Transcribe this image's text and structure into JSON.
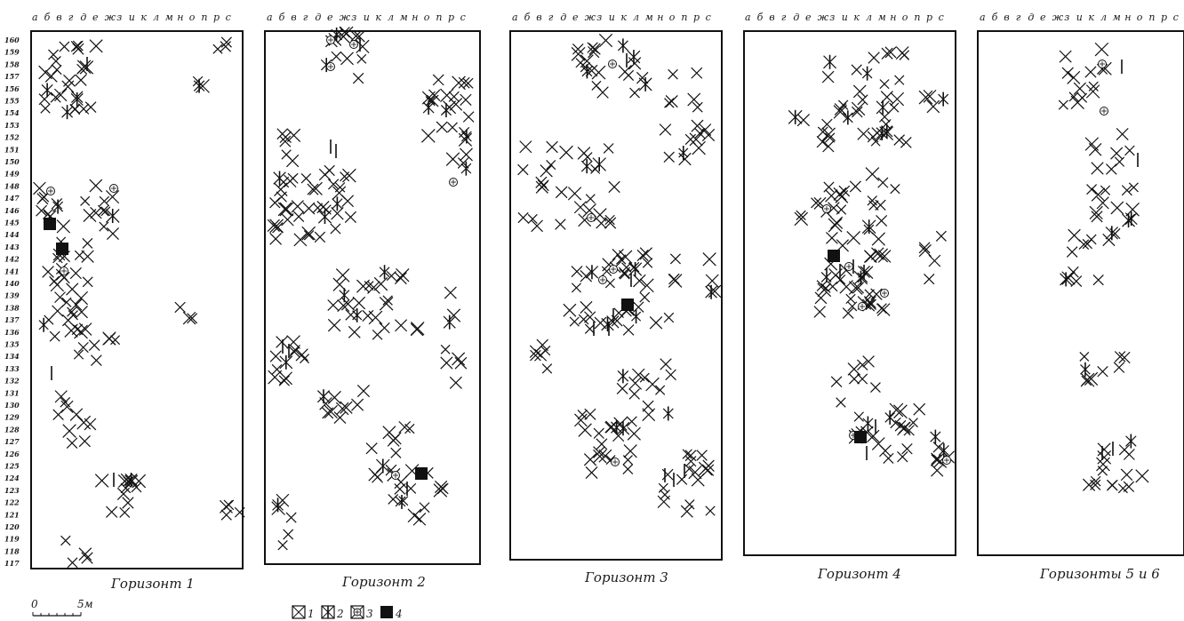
{
  "column_letters": [
    "а",
    "б",
    "в",
    "г",
    "д",
    "е",
    "ж",
    "з",
    "и",
    "к",
    "л",
    "м",
    "н",
    "о",
    "п",
    "р",
    "с"
  ],
  "row_numbers": [
    "160",
    "159",
    "158",
    "157",
    "156",
    "155",
    "154",
    "153",
    "152",
    "151",
    "150",
    "149",
    "148",
    "147",
    "146",
    "145",
    "144",
    "143",
    "142",
    "141",
    "140",
    "139",
    "138",
    "137",
    "136",
    "135",
    "134",
    "133",
    "132",
    "131",
    "130",
    "129",
    "128",
    "127",
    "126",
    "125",
    "124",
    "123",
    "122",
    "121",
    "120",
    "119",
    "118",
    "117"
  ],
  "panels": [
    {
      "caption": "Горизонт 1"
    },
    {
      "caption": "Горизонт 2"
    },
    {
      "caption": "Горизонт 3"
    },
    {
      "caption": "Горизонт 4"
    },
    {
      "caption": "Горизонты 5 и 6"
    }
  ],
  "scale_bar": {
    "start": "0",
    "end": "5м"
  },
  "legend": [
    {
      "number": "1",
      "symbol": "cross"
    },
    {
      "number": "2",
      "symbol": "cross-with-bar"
    },
    {
      "number": "3",
      "symbol": "hatched-circle"
    },
    {
      "number": "4",
      "symbol": "solid-square"
    }
  ]
}
